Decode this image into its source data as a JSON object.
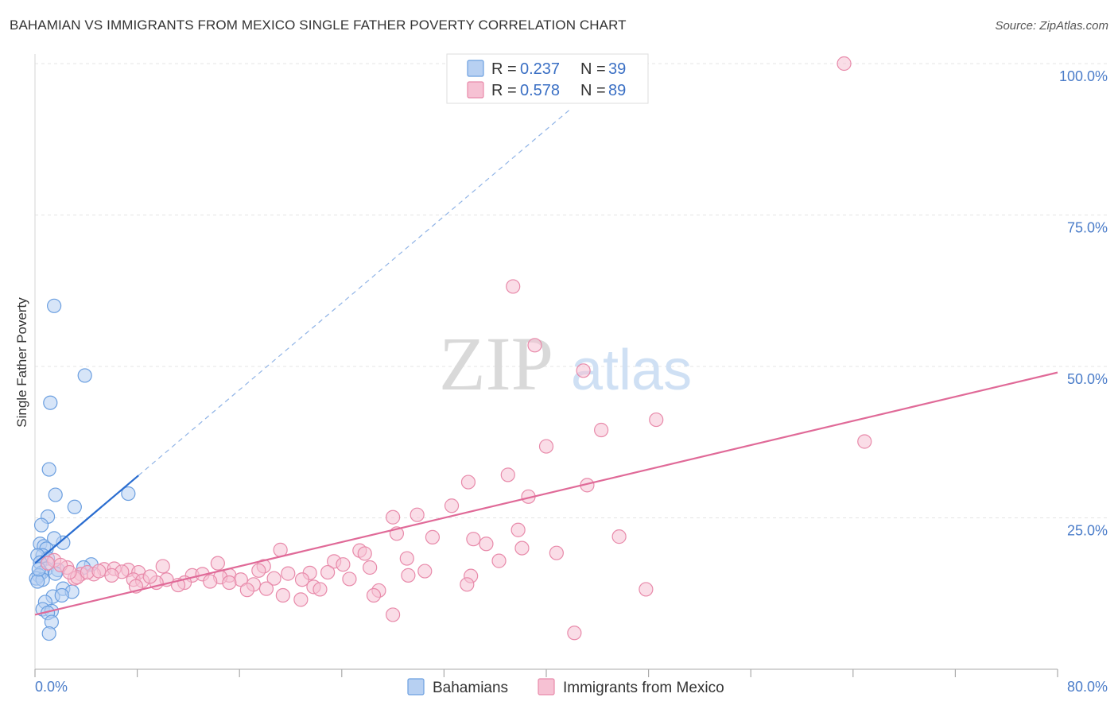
{
  "chart_data": {
    "type": "scatter",
    "title": "BAHAMIAN VS IMMIGRANTS FROM MEXICO SINGLE FATHER POVERTY CORRELATION CHART",
    "source": "Source: ZipAtlas.com",
    "xlabel": "",
    "ylabel": "Single Father Poverty",
    "xlim": [
      0,
      80
    ],
    "ylim": [
      0,
      100
    ],
    "x_tick_labels": [
      "0.0%",
      "80.0%"
    ],
    "y_ticks": [
      {
        "value": 25,
        "label": "25.0%"
      },
      {
        "value": 50,
        "label": "50.0%"
      },
      {
        "value": 75,
        "label": "75.0%"
      },
      {
        "value": 100,
        "label": "100.0%"
      }
    ],
    "watermark": {
      "zip": "ZIP",
      "atlas": "atlas"
    },
    "legend": {
      "r_label": "R = ",
      "n_label": "N = ",
      "entries": [
        {
          "r": "0.237",
          "n": "39"
        },
        {
          "r": "0.578",
          "n": "89"
        }
      ]
    },
    "series": [
      {
        "name": "Bahamians",
        "color": "#6b9fe0",
        "fill": "#b7d0f2",
        "line_color": "#2a6dd0",
        "trend": {
          "x0": 0.0,
          "y0": 17.5,
          "x1": 8.1,
          "y1": 32.0,
          "dash_to_x": 42.0
        },
        "points": [
          [
            1.5,
            60.0
          ],
          [
            3.9,
            48.5
          ],
          [
            1.2,
            44.0
          ],
          [
            1.1,
            33.0
          ],
          [
            7.3,
            29.0
          ],
          [
            1.6,
            28.8
          ],
          [
            3.1,
            26.8
          ],
          [
            1.0,
            25.2
          ],
          [
            0.5,
            23.8
          ],
          [
            2.2,
            20.9
          ],
          [
            0.4,
            20.7
          ],
          [
            0.7,
            20.3
          ],
          [
            1.5,
            21.6
          ],
          [
            0.9,
            19.9
          ],
          [
            0.6,
            18.8
          ],
          [
            1.0,
            18.3
          ],
          [
            0.2,
            18.8
          ],
          [
            0.4,
            17.6
          ],
          [
            4.4,
            17.3
          ],
          [
            0.9,
            16.6
          ],
          [
            1.8,
            16.4
          ],
          [
            3.8,
            16.8
          ],
          [
            0.5,
            15.9
          ],
          [
            1.6,
            15.8
          ],
          [
            0.3,
            15.5
          ],
          [
            0.1,
            15.0
          ],
          [
            0.6,
            14.8
          ],
          [
            0.2,
            14.5
          ],
          [
            2.2,
            13.3
          ],
          [
            2.9,
            12.8
          ],
          [
            1.4,
            12.0
          ],
          [
            2.1,
            12.2
          ],
          [
            0.8,
            11.1
          ],
          [
            0.6,
            9.9
          ],
          [
            1.3,
            9.6
          ],
          [
            1.0,
            9.3
          ],
          [
            1.3,
            7.8
          ],
          [
            1.1,
            5.9
          ],
          [
            0.3,
            16.5
          ]
        ]
      },
      {
        "name": "Immigrants from Mexico",
        "color": "#e88aaa",
        "fill": "#f6c1d3",
        "line_color": "#e06a98",
        "trend": {
          "x0": 0.0,
          "y0": 9.0,
          "x1": 80.0,
          "y1": 49.0
        },
        "points": [
          [
            63.3,
            100.0
          ],
          [
            37.4,
            63.2
          ],
          [
            39.1,
            53.5
          ],
          [
            42.9,
            49.3
          ],
          [
            48.6,
            41.2
          ],
          [
            44.3,
            39.5
          ],
          [
            64.9,
            37.6
          ],
          [
            40.0,
            36.8
          ],
          [
            37.0,
            32.1
          ],
          [
            33.9,
            30.9
          ],
          [
            43.2,
            30.4
          ],
          [
            38.6,
            28.5
          ],
          [
            32.6,
            27.0
          ],
          [
            29.9,
            25.5
          ],
          [
            28.0,
            25.1
          ],
          [
            37.8,
            23.0
          ],
          [
            28.3,
            22.4
          ],
          [
            45.7,
            21.9
          ],
          [
            31.1,
            21.8
          ],
          [
            34.3,
            21.5
          ],
          [
            35.3,
            20.7
          ],
          [
            38.1,
            20.0
          ],
          [
            40.8,
            19.2
          ],
          [
            19.2,
            19.7
          ],
          [
            25.4,
            19.6
          ],
          [
            25.8,
            19.1
          ],
          [
            29.1,
            18.3
          ],
          [
            23.4,
            17.8
          ],
          [
            36.3,
            17.9
          ],
          [
            24.1,
            17.3
          ],
          [
            14.3,
            17.5
          ],
          [
            17.9,
            17.0
          ],
          [
            10.0,
            17.0
          ],
          [
            26.2,
            16.8
          ],
          [
            2.5,
            16.8
          ],
          [
            17.5,
            16.3
          ],
          [
            5.4,
            16.5
          ],
          [
            6.2,
            16.6
          ],
          [
            30.5,
            16.2
          ],
          [
            7.3,
            16.4
          ],
          [
            8.1,
            16.0
          ],
          [
            22.9,
            16.0
          ],
          [
            6.8,
            16.1
          ],
          [
            3.6,
            15.7
          ],
          [
            4.6,
            15.7
          ],
          [
            12.3,
            15.5
          ],
          [
            15.2,
            15.5
          ],
          [
            19.8,
            15.8
          ],
          [
            21.5,
            15.9
          ],
          [
            13.1,
            15.7
          ],
          [
            29.2,
            15.5
          ],
          [
            34.1,
            15.4
          ],
          [
            18.7,
            15.0
          ],
          [
            7.7,
            14.8
          ],
          [
            14.5,
            15.2
          ],
          [
            10.3,
            14.8
          ],
          [
            8.4,
            14.6
          ],
          [
            16.1,
            14.8
          ],
          [
            3.1,
            15.0
          ],
          [
            20.9,
            14.8
          ],
          [
            24.6,
            14.9
          ],
          [
            13.7,
            14.5
          ],
          [
            11.7,
            14.3
          ],
          [
            15.2,
            14.3
          ],
          [
            9.5,
            14.3
          ],
          [
            17.1,
            14.0
          ],
          [
            33.8,
            14.0
          ],
          [
            7.9,
            13.7
          ],
          [
            21.8,
            13.6
          ],
          [
            16.6,
            13.1
          ],
          [
            22.3,
            13.2
          ],
          [
            26.9,
            13.0
          ],
          [
            18.1,
            13.3
          ],
          [
            19.4,
            12.2
          ],
          [
            26.5,
            12.2
          ],
          [
            47.8,
            13.2
          ],
          [
            20.8,
            11.5
          ],
          [
            28.0,
            9.0
          ],
          [
            42.2,
            6.0
          ],
          [
            1.5,
            18.0
          ],
          [
            2.0,
            17.2
          ],
          [
            1.0,
            17.5
          ],
          [
            3.3,
            15.2
          ],
          [
            4.1,
            16.0
          ],
          [
            5.0,
            16.2
          ],
          [
            9.0,
            15.3
          ],
          [
            11.2,
            13.9
          ],
          [
            2.7,
            16.0
          ],
          [
            6.0,
            15.5
          ]
        ]
      }
    ]
  }
}
